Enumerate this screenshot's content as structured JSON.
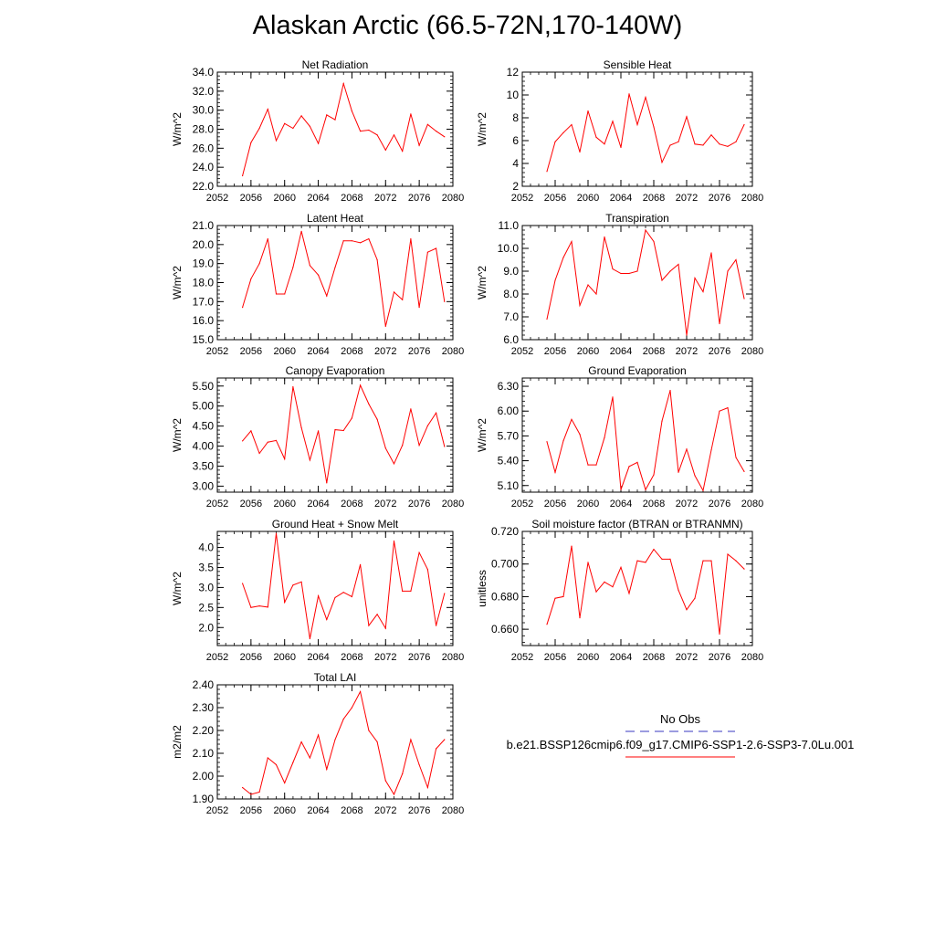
{
  "page": {
    "title": "Alaskan Arctic (66.5-72N,170-140W)"
  },
  "legend": {
    "entries": [
      {
        "label": "No Obs",
        "color": "#3a3ac0",
        "dashed": true
      },
      {
        "label": "b.e21.BSSP126cmip6.f09_g17.CMIP6-SSP1-2.6-SSP3-7.0Lu.001",
        "color": "#ff0000",
        "dashed": false
      }
    ]
  },
  "chart_data": [
    {
      "type": "line",
      "title": "Net Radiation",
      "ylabel": "W/m^2",
      "xlim": [
        2052,
        2080
      ],
      "ylim": [
        22,
        34
      ],
      "xticks": [
        2052,
        2056,
        2060,
        2064,
        2068,
        2072,
        2076,
        2080
      ],
      "xtick_labels": [
        "2052",
        "2056",
        "2060",
        "2064",
        "2068",
        "2072",
        "2076",
        "2080"
      ],
      "yticks": [
        22,
        24,
        26,
        28,
        30,
        32,
        34
      ],
      "ytick_labels": [
        "22.0",
        "24.0",
        "26.0",
        "28.0",
        "30.0",
        "32.0",
        "34.0"
      ],
      "x": [
        2055,
        2056,
        2057,
        2058,
        2059,
        2060,
        2061,
        2062,
        2063,
        2064,
        2065,
        2066,
        2067,
        2068,
        2069,
        2070,
        2071,
        2072,
        2073,
        2074,
        2075,
        2076,
        2077,
        2078,
        2079
      ],
      "series": [
        {
          "color": "#ff0000",
          "values": [
            23.1,
            26.6,
            28.1,
            30.1,
            26.8,
            28.6,
            28.1,
            29.4,
            28.3,
            26.5,
            29.5,
            29.0,
            32.8,
            29.9,
            27.8,
            27.9,
            27.4,
            25.8,
            27.4,
            25.7,
            29.6,
            26.3,
            28.5,
            27.8,
            27.2
          ]
        }
      ]
    },
    {
      "type": "line",
      "title": "Sensible Heat",
      "ylabel": "W/m^2",
      "xlim": [
        2052,
        2080
      ],
      "ylim": [
        2,
        12
      ],
      "xticks": [
        2052,
        2056,
        2060,
        2064,
        2068,
        2072,
        2076,
        2080
      ],
      "xtick_labels": [
        "2052",
        "2056",
        "2060",
        "2064",
        "2068",
        "2072",
        "2076",
        "2080"
      ],
      "yticks": [
        2,
        4,
        6,
        8,
        10,
        12
      ],
      "ytick_labels": [
        "2",
        "4",
        "6",
        "8",
        "10",
        "12"
      ],
      "x": [
        2055,
        2056,
        2057,
        2058,
        2059,
        2060,
        2061,
        2062,
        2063,
        2064,
        2065,
        2066,
        2067,
        2068,
        2069,
        2070,
        2071,
        2072,
        2073,
        2074,
        2075,
        2076,
        2077,
        2078,
        2079
      ],
      "series": [
        {
          "color": "#ff0000",
          "values": [
            3.3,
            5.9,
            6.7,
            7.4,
            5.0,
            8.6,
            6.3,
            5.7,
            7.7,
            5.4,
            10.1,
            7.4,
            9.8,
            7.2,
            4.1,
            5.6,
            5.9,
            8.1,
            5.7,
            5.6,
            6.5,
            5.7,
            5.5,
            5.9,
            7.4
          ]
        }
      ]
    },
    {
      "type": "line",
      "title": "Latent Heat",
      "ylabel": "W/m^2",
      "xlim": [
        2052,
        2080
      ],
      "ylim": [
        15,
        21
      ],
      "xticks": [
        2052,
        2056,
        2060,
        2064,
        2068,
        2072,
        2076,
        2080
      ],
      "xtick_labels": [
        "2052",
        "2056",
        "2060",
        "2064",
        "2068",
        "2072",
        "2076",
        "2080"
      ],
      "yticks": [
        15,
        16,
        17,
        18,
        19,
        20,
        21
      ],
      "ytick_labels": [
        "15.0",
        "16.0",
        "17.0",
        "18.0",
        "19.0",
        "20.0",
        "21.0"
      ],
      "x": [
        2055,
        2056,
        2057,
        2058,
        2059,
        2060,
        2061,
        2062,
        2063,
        2064,
        2065,
        2066,
        2067,
        2068,
        2069,
        2070,
        2071,
        2072,
        2073,
        2074,
        2075,
        2076,
        2077,
        2078,
        2079
      ],
      "series": [
        {
          "color": "#ff0000",
          "values": [
            16.7,
            18.2,
            19.0,
            20.3,
            17.4,
            17.4,
            18.8,
            20.7,
            18.9,
            18.4,
            17.3,
            18.8,
            20.2,
            20.2,
            20.1,
            20.3,
            19.2,
            15.7,
            17.5,
            17.1,
            20.3,
            16.7,
            19.6,
            19.8,
            17.0
          ]
        }
      ]
    },
    {
      "type": "line",
      "title": "Transpiration",
      "ylabel": "W/m^2",
      "xlim": [
        2052,
        2080
      ],
      "ylim": [
        6,
        11
      ],
      "xticks": [
        2052,
        2056,
        2060,
        2064,
        2068,
        2072,
        2076,
        2080
      ],
      "xtick_labels": [
        "2052",
        "2056",
        "2060",
        "2064",
        "2068",
        "2072",
        "2076",
        "2080"
      ],
      "yticks": [
        6,
        7,
        8,
        9,
        10,
        11
      ],
      "ytick_labels": [
        "6.0",
        "7.0",
        "8.0",
        "9.0",
        "10.0",
        "11.0"
      ],
      "x": [
        2055,
        2056,
        2057,
        2058,
        2059,
        2060,
        2061,
        2062,
        2063,
        2064,
        2065,
        2066,
        2067,
        2068,
        2069,
        2070,
        2071,
        2072,
        2073,
        2074,
        2075,
        2076,
        2077,
        2078,
        2079
      ],
      "series": [
        {
          "color": "#ff0000",
          "values": [
            6.9,
            8.6,
            9.6,
            10.3,
            7.5,
            8.4,
            8.0,
            10.5,
            9.1,
            8.9,
            8.9,
            9.0,
            10.8,
            10.3,
            8.6,
            9.0,
            9.3,
            6.2,
            8.7,
            8.1,
            9.8,
            6.7,
            9.0,
            9.5,
            7.8
          ]
        }
      ]
    },
    {
      "type": "line",
      "title": "Canopy Evaporation",
      "ylabel": "W/m^2",
      "xlim": [
        2052,
        2080
      ],
      "ylim": [
        2.85,
        5.7
      ],
      "xticks": [
        2052,
        2056,
        2060,
        2064,
        2068,
        2072,
        2076,
        2080
      ],
      "xtick_labels": [
        "2052",
        "2056",
        "2060",
        "2064",
        "2068",
        "2072",
        "2076",
        "2080"
      ],
      "yticks": [
        3.0,
        3.5,
        4.0,
        4.5,
        5.0,
        5.5
      ],
      "ytick_labels": [
        "3.00",
        "3.50",
        "4.00",
        "4.50",
        "5.00",
        "5.50"
      ],
      "x": [
        2055,
        2056,
        2057,
        2058,
        2059,
        2060,
        2061,
        2062,
        2063,
        2064,
        2065,
        2066,
        2067,
        2068,
        2069,
        2070,
        2071,
        2072,
        2073,
        2074,
        2075,
        2076,
        2077,
        2078,
        2079
      ],
      "series": [
        {
          "color": "#ff0000",
          "values": [
            4.13,
            4.38,
            3.82,
            4.1,
            4.14,
            3.68,
            5.48,
            4.46,
            3.65,
            4.38,
            3.08,
            4.41,
            4.39,
            4.7,
            5.52,
            5.05,
            4.67,
            3.95,
            3.56,
            4.02,
            4.93,
            4.02,
            4.51,
            4.83,
            3.99
          ]
        }
      ]
    },
    {
      "type": "line",
      "title": "Ground Evaporation",
      "ylabel": "W/m^2",
      "xlim": [
        2052,
        2080
      ],
      "ylim": [
        5.02,
        6.4
      ],
      "xticks": [
        2052,
        2056,
        2060,
        2064,
        2068,
        2072,
        2076,
        2080
      ],
      "xtick_labels": [
        "2052",
        "2056",
        "2060",
        "2064",
        "2068",
        "2072",
        "2076",
        "2080"
      ],
      "yticks": [
        5.1,
        5.4,
        5.7,
        6.0,
        6.3
      ],
      "ytick_labels": [
        "5.10",
        "5.40",
        "5.70",
        "6.00",
        "6.30"
      ],
      "x": [
        2055,
        2056,
        2057,
        2058,
        2059,
        2060,
        2061,
        2062,
        2063,
        2064,
        2065,
        2066,
        2067,
        2068,
        2069,
        2070,
        2071,
        2072,
        2073,
        2074,
        2075,
        2076,
        2077,
        2078,
        2079
      ],
      "series": [
        {
          "color": "#ff0000",
          "values": [
            5.63,
            5.26,
            5.64,
            5.9,
            5.72,
            5.35,
            5.35,
            5.68,
            6.17,
            5.05,
            5.33,
            5.38,
            5.05,
            5.23,
            5.88,
            6.25,
            5.26,
            5.54,
            5.22,
            5.04,
            5.53,
            6.0,
            6.04,
            5.44,
            5.27
          ]
        }
      ]
    },
    {
      "type": "line",
      "title": "Ground Heat + Snow Melt",
      "ylabel": "W/m^2",
      "xlim": [
        2052,
        2080
      ],
      "ylim": [
        1.55,
        4.4
      ],
      "xticks": [
        2052,
        2056,
        2060,
        2064,
        2068,
        2072,
        2076,
        2080
      ],
      "xtick_labels": [
        "2052",
        "2056",
        "2060",
        "2064",
        "2068",
        "2072",
        "2076",
        "2080"
      ],
      "yticks": [
        2.0,
        2.5,
        3.0,
        3.5,
        4.0
      ],
      "ytick_labels": [
        "2.0",
        "2.5",
        "3.0",
        "3.5",
        "4.0"
      ],
      "x": [
        2055,
        2056,
        2057,
        2058,
        2059,
        2060,
        2061,
        2062,
        2063,
        2064,
        2065,
        2066,
        2067,
        2068,
        2069,
        2070,
        2071,
        2072,
        2073,
        2074,
        2075,
        2076,
        2077,
        2078,
        2079
      ],
      "series": [
        {
          "color": "#ff0000",
          "values": [
            3.1,
            2.5,
            2.54,
            2.51,
            4.35,
            2.63,
            3.06,
            3.14,
            1.72,
            2.79,
            2.2,
            2.75,
            2.88,
            2.77,
            3.57,
            2.05,
            2.33,
            1.98,
            4.16,
            2.91,
            2.91,
            3.87,
            3.45,
            2.05,
            2.85
          ]
        }
      ]
    },
    {
      "type": "line",
      "title": "Soil moisture factor (BTRAN or BTRANMN)",
      "ylabel": "unitless",
      "xlim": [
        2052,
        2080
      ],
      "ylim": [
        0.65,
        0.72
      ],
      "xticks": [
        2052,
        2056,
        2060,
        2064,
        2068,
        2072,
        2076,
        2080
      ],
      "xtick_labels": [
        "2052",
        "2056",
        "2060",
        "2064",
        "2068",
        "2072",
        "2076",
        "2080"
      ],
      "yticks": [
        0.66,
        0.68,
        0.7,
        0.72
      ],
      "ytick_labels": [
        "0.660",
        "0.680",
        "0.700",
        "0.720"
      ],
      "x": [
        2055,
        2056,
        2057,
        2058,
        2059,
        2060,
        2061,
        2062,
        2063,
        2064,
        2065,
        2066,
        2067,
        2068,
        2069,
        2070,
        2071,
        2072,
        2073,
        2074,
        2075,
        2076,
        2077,
        2078,
        2079
      ],
      "series": [
        {
          "color": "#ff0000",
          "values": [
            0.663,
            0.679,
            0.68,
            0.711,
            0.667,
            0.701,
            0.683,
            0.689,
            0.686,
            0.698,
            0.682,
            0.702,
            0.701,
            0.709,
            0.703,
            0.703,
            0.684,
            0.672,
            0.679,
            0.702,
            0.702,
            0.657,
            0.706,
            0.702,
            0.697
          ]
        }
      ]
    },
    {
      "type": "line",
      "title": "Total LAI",
      "ylabel": "m2/m2",
      "xlim": [
        2052,
        2080
      ],
      "ylim": [
        1.9,
        2.4
      ],
      "xticks": [
        2052,
        2056,
        2060,
        2064,
        2068,
        2072,
        2076,
        2080
      ],
      "xtick_labels": [
        "2052",
        "2056",
        "2060",
        "2064",
        "2068",
        "2072",
        "2076",
        "2080"
      ],
      "yticks": [
        1.9,
        2.0,
        2.1,
        2.2,
        2.3,
        2.4
      ],
      "ytick_labels": [
        "1.90",
        "2.00",
        "2.10",
        "2.20",
        "2.30",
        "2.40"
      ],
      "x": [
        2055,
        2056,
        2057,
        2058,
        2059,
        2060,
        2061,
        2062,
        2063,
        2064,
        2065,
        2066,
        2067,
        2068,
        2069,
        2070,
        2071,
        2072,
        2073,
        2074,
        2075,
        2076,
        2077,
        2078,
        2079
      ],
      "series": [
        {
          "color": "#ff0000",
          "values": [
            1.95,
            1.92,
            1.93,
            2.08,
            2.05,
            1.97,
            2.06,
            2.15,
            2.08,
            2.18,
            2.03,
            2.16,
            2.25,
            2.3,
            2.37,
            2.2,
            2.15,
            1.98,
            1.92,
            2.01,
            2.16,
            2.05,
            1.95,
            2.12,
            2.16
          ]
        }
      ]
    }
  ]
}
